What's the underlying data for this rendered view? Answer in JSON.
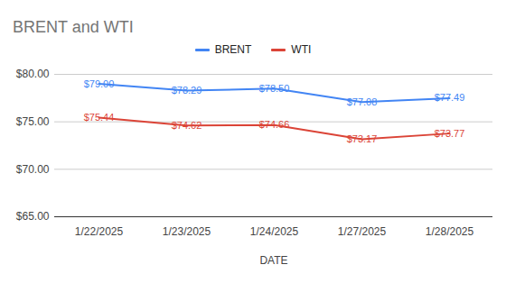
{
  "chart_data": {
    "type": "line",
    "title": "BRENT and WTI",
    "x_label": "DATE",
    "categories": [
      "1/22/2025",
      "1/23/2025",
      "1/24/2025",
      "1/27/2025",
      "1/28/2025"
    ],
    "series": [
      {
        "name": "BRENT",
        "color": "#4285f4",
        "values": [
          79.0,
          78.29,
          78.5,
          77.08,
          77.49
        ],
        "value_labels": [
          "$79.00",
          "$78.29",
          "$78.50",
          "$77.08",
          "$77.49"
        ]
      },
      {
        "name": "WTI",
        "color": "#db4437",
        "values": [
          75.44,
          74.62,
          74.66,
          73.17,
          73.77
        ],
        "value_labels": [
          "$75.44",
          "$74.62",
          "$74.66",
          "$73.17",
          "$73.77"
        ]
      }
    ],
    "ylim": [
      65,
      80
    ],
    "yticks": [
      {
        "value": 65,
        "label": "$65.00"
      },
      {
        "value": 70,
        "label": "$70.00"
      },
      {
        "value": 75,
        "label": "$75.00"
      },
      {
        "value": 80,
        "label": "$80.00"
      }
    ],
    "grid": true,
    "legend": "top",
    "data_labels": true
  }
}
